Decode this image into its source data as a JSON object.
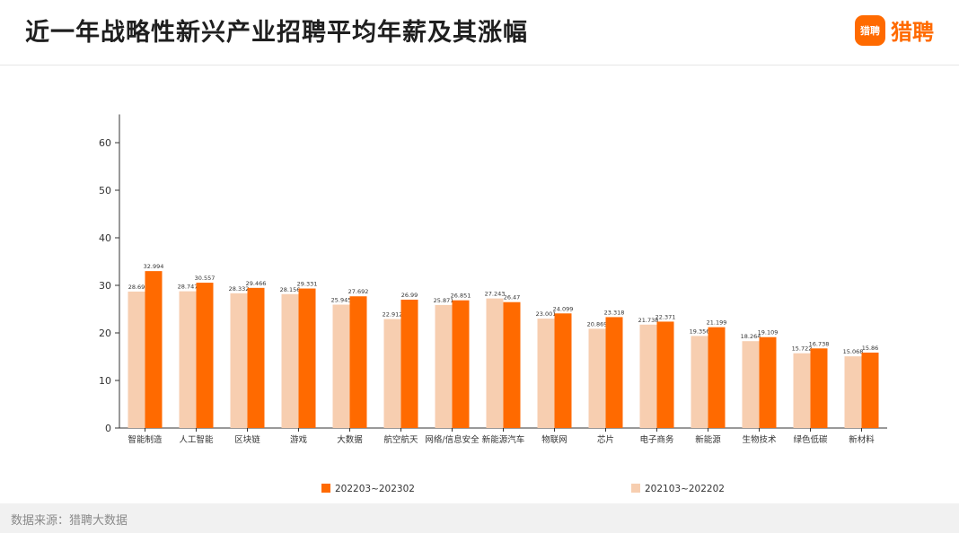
{
  "header": {
    "title": "近一年战略性新兴产业招聘平均年薪及其涨幅",
    "logo_text": "猎聘",
    "logo_badge": "猎聘",
    "logo_icon": "chat-bubble-icon"
  },
  "footer": {
    "source": "数据来源：猎聘大数据"
  },
  "colors": {
    "current": "#ff6a00",
    "previous": "#f7ceb0",
    "axis": "#333333"
  },
  "chart_data": {
    "type": "bar",
    "categories": [
      "智能制造",
      "人工智能",
      "区块链",
      "游戏",
      "大数据",
      "航空航天",
      "网络/信息安全",
      "新能源汽车",
      "物联网",
      "芯片",
      "电子商务",
      "新能源",
      "生物技术",
      "绿色低碳",
      "新材料"
    ],
    "series": [
      {
        "name": "202103~202202",
        "color": "#f7ceb0",
        "values": [
          28.69,
          28.747,
          28.332,
          28.156,
          25.945,
          22.912,
          25.871,
          27.243,
          23.001,
          20.869,
          21.738,
          19.356,
          18.264,
          15.722,
          15.068
        ],
        "labels": [
          "28.69",
          "28.747",
          "28.332",
          "28.156",
          "25.945",
          "22.912",
          "25.871",
          "27.243",
          "23.001",
          "20.869",
          "21.738",
          "19.356",
          "18.264",
          "15.722",
          "15.068"
        ]
      },
      {
        "name": "202203~202302",
        "color": "#ff6a00",
        "values": [
          32.994,
          30.557,
          29.466,
          29.331,
          27.692,
          26.99,
          26.851,
          26.47,
          24.099,
          23.318,
          22.371,
          21.199,
          19.109,
          16.738,
          15.86
        ],
        "labels": [
          "32.994",
          "30.557",
          "29.466",
          "29.331",
          "27.692",
          "26.99",
          "26.851",
          "26.47",
          "24.099",
          "23.318",
          "22.371",
          "21.199",
          "19.109",
          "16.738",
          "15.86"
        ]
      }
    ],
    "yticks": [
      "0",
      "10",
      "20",
      "30",
      "40",
      "50",
      "60"
    ],
    "ylim": [
      0,
      65
    ],
    "grid": false,
    "legend": "bottom",
    "legend_order": [
      "202203~202302",
      "202103~202202"
    ]
  }
}
